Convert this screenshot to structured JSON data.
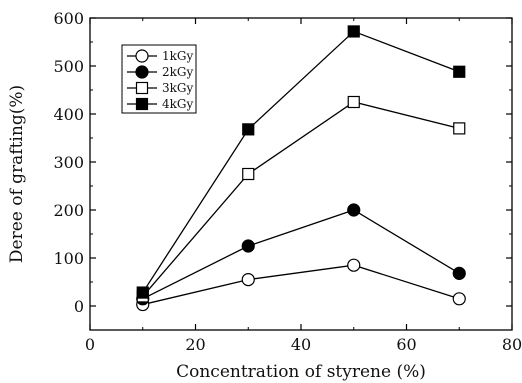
{
  "chart_data": {
    "type": "line",
    "xlabel": "Concentration of styrene (%)",
    "ylabel": "Deree of grafting(%)",
    "xlim": [
      0,
      80
    ],
    "ylim": [
      -50,
      600
    ],
    "xticks": [
      0,
      20,
      40,
      60,
      80
    ],
    "yticks": [
      0,
      100,
      200,
      300,
      400,
      500,
      600
    ],
    "x": [
      10,
      30,
      50,
      70
    ],
    "series": [
      {
        "name": "1kGy",
        "marker": "open-circle",
        "values": [
          3,
          55,
          85,
          15
        ]
      },
      {
        "name": "2kGy",
        "marker": "filled-circle",
        "values": [
          15,
          125,
          200,
          68
        ]
      },
      {
        "name": "3kGy",
        "marker": "open-square",
        "values": [
          20,
          275,
          425,
          370
        ]
      },
      {
        "name": "4kGy",
        "marker": "filled-square",
        "values": [
          28,
          368,
          572,
          488
        ]
      }
    ],
    "legend_placement": "top-left",
    "grid": false,
    "colors": {
      "line": "#000000",
      "marker_fill_open": "#ffffff",
      "marker_fill_filled": "#000000"
    }
  }
}
